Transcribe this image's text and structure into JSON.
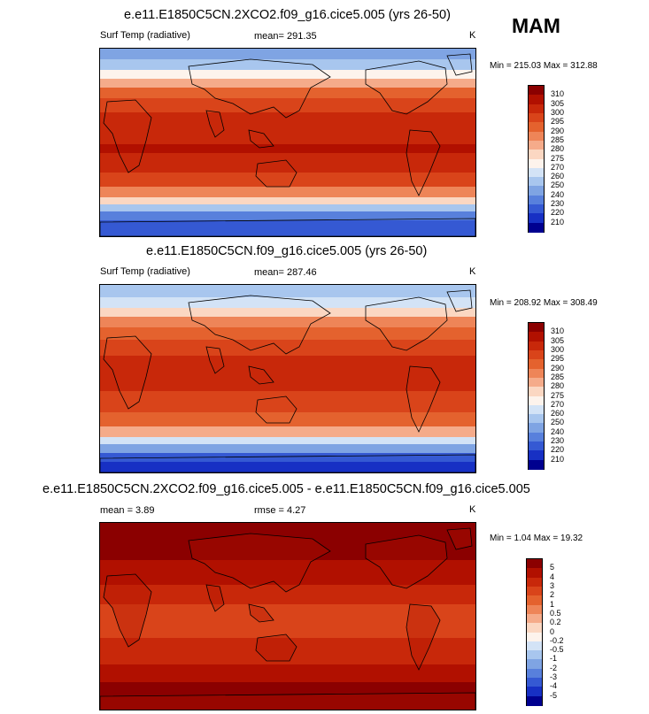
{
  "season": "MAM",
  "panels": [
    {
      "title": "e.e11.E1850C5CN.2XCO2.f09_g16.cice5.005 (yrs 26-50)",
      "left_label": "Surf Temp (radiative)",
      "center_label": "mean= 291.35",
      "units": "K",
      "minmax": "Min = 215.03 Max = 312.88",
      "colorbar_labels": [
        "310",
        "305",
        "300",
        "295",
        "290",
        "285",
        "280",
        "275",
        "270",
        "260",
        "250",
        "240",
        "230",
        "220",
        "210"
      ],
      "colors": [
        "#8b0000",
        "#b11000",
        "#c8280a",
        "#d9441a",
        "#e4622e",
        "#ee8558",
        "#f5ab8a",
        "#fbd7c2",
        "#fdf3ec",
        "#d3e3f6",
        "#a8c6ee",
        "#7fa4e3",
        "#5880dc",
        "#3559d3",
        "#1730c4",
        "#00008f"
      ]
    },
    {
      "title": "e.e11.E1850C5CN.f09_g16.cice5.005 (yrs 26-50)",
      "left_label": "Surf Temp (radiative)",
      "center_label": "mean= 287.46",
      "units": "K",
      "minmax": "Min = 208.92 Max = 308.49",
      "colorbar_labels": [
        "310",
        "305",
        "300",
        "295",
        "290",
        "285",
        "280",
        "275",
        "270",
        "260",
        "250",
        "240",
        "230",
        "220",
        "210"
      ],
      "colors": [
        "#8b0000",
        "#b11000",
        "#c8280a",
        "#d9441a",
        "#e4622e",
        "#ee8558",
        "#f5ab8a",
        "#fbd7c2",
        "#fdf3ec",
        "#d3e3f6",
        "#a8c6ee",
        "#7fa4e3",
        "#5880dc",
        "#3559d3",
        "#1730c4",
        "#00008f"
      ]
    },
    {
      "title": "e.e11.E1850C5CN.2XCO2.f09_g16.cice5.005 - e.e11.E1850C5CN.f09_g16.cice5.005",
      "left_label": "mean =  3.89",
      "center_label": "rmse =  4.27",
      "units": "K",
      "minmax": "Min =  1.04 Max = 19.32",
      "colorbar_labels": [
        "5",
        "4",
        "3",
        "2",
        "1",
        "0.5",
        "0.2",
        "0",
        "-0.2",
        "-0.5",
        "-1",
        "-2",
        "-3",
        "-4",
        "-5"
      ],
      "colors": [
        "#8b0000",
        "#b11000",
        "#c8280a",
        "#d9441a",
        "#e4622e",
        "#ee8558",
        "#f5ab8a",
        "#fbd7c2",
        "#fdf3ec",
        "#d3e3f6",
        "#a8c6ee",
        "#7fa4e3",
        "#5880dc",
        "#3559d3",
        "#1730c4",
        "#00008f"
      ]
    }
  ]
}
